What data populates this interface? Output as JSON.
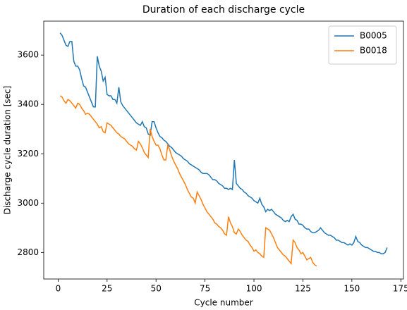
{
  "chart_data": {
    "type": "line",
    "title": "Duration of each discharge cycle",
    "xlabel": "Cycle number",
    "ylabel": "Discharge cycle duration [sec]",
    "xlim": [
      -7.35,
      176.35
    ],
    "xticks": [
      0,
      25,
      50,
      75,
      100,
      125,
      150,
      175
    ],
    "ylim": [
      2692.5,
      3737.5
    ],
    "yticks": [
      2800,
      3000,
      3200,
      3400,
      3600
    ],
    "grid": false,
    "legend": "upper right",
    "series": [
      {
        "name": "B0005",
        "color": "#1f77b4",
        "x": [
          1,
          2,
          3,
          4,
          5,
          6,
          7,
          8,
          9,
          10,
          11,
          12,
          13,
          14,
          15,
          16,
          17,
          18,
          19,
          20,
          21,
          22,
          23,
          24,
          25,
          26,
          27,
          28,
          29,
          30,
          31,
          32,
          33,
          34,
          35,
          36,
          37,
          38,
          39,
          40,
          41,
          42,
          43,
          44,
          45,
          46,
          47,
          48,
          49,
          50,
          51,
          52,
          53,
          54,
          55,
          56,
          57,
          58,
          59,
          60,
          61,
          62,
          63,
          64,
          65,
          66,
          67,
          68,
          69,
          70,
          71,
          72,
          73,
          74,
          75,
          76,
          77,
          78,
          79,
          80,
          81,
          82,
          83,
          84,
          85,
          86,
          87,
          88,
          89,
          90,
          91,
          92,
          93,
          94,
          95,
          96,
          97,
          98,
          99,
          100,
          101,
          102,
          103,
          104,
          105,
          106,
          107,
          108,
          109,
          110,
          111,
          112,
          113,
          114,
          115,
          116,
          117,
          118,
          119,
          120,
          121,
          122,
          123,
          124,
          125,
          126,
          127,
          128,
          129,
          130,
          131,
          132,
          133,
          134,
          135,
          136,
          137,
          138,
          139,
          140,
          141,
          142,
          143,
          144,
          145,
          146,
          147,
          148,
          149,
          150,
          151,
          152,
          153,
          154,
          155,
          156,
          157,
          158,
          159,
          160,
          161,
          162,
          163,
          164,
          165,
          166,
          167,
          168
        ],
        "values": [
          3690,
          3680,
          3660,
          3640,
          3635,
          3655,
          3655,
          3575,
          3555,
          3555,
          3540,
          3505,
          3475,
          3470,
          3450,
          3430,
          3410,
          3390,
          3390,
          3595,
          3555,
          3535,
          3495,
          3510,
          3440,
          3435,
          3435,
          3420,
          3420,
          3405,
          3470,
          3410,
          3395,
          3385,
          3375,
          3365,
          3355,
          3345,
          3335,
          3325,
          3320,
          3315,
          3330,
          3310,
          3305,
          3280,
          3275,
          3330,
          3330,
          3305,
          3285,
          3270,
          3265,
          3255,
          3250,
          3240,
          3230,
          3225,
          3215,
          3205,
          3200,
          3195,
          3190,
          3180,
          3175,
          3170,
          3160,
          3155,
          3150,
          3145,
          3140,
          3135,
          3125,
          3120,
          3120,
          3120,
          3115,
          3105,
          3095,
          3095,
          3090,
          3080,
          3075,
          3070,
          3060,
          3060,
          3055,
          3060,
          3055,
          3175,
          3080,
          3070,
          3060,
          3055,
          3045,
          3040,
          3030,
          3025,
          3020,
          3010,
          3005,
          3000,
          3020,
          2995,
          2985,
          2965,
          2975,
          2970,
          2975,
          2965,
          2955,
          2950,
          2945,
          2940,
          2930,
          2925,
          2930,
          2925,
          2945,
          2955,
          2935,
          2930,
          2915,
          2915,
          2910,
          2900,
          2895,
          2895,
          2885,
          2880,
          2880,
          2885,
          2890,
          2900,
          2890,
          2880,
          2875,
          2870,
          2870,
          2865,
          2860,
          2850,
          2850,
          2845,
          2840,
          2840,
          2835,
          2830,
          2835,
          2830,
          2840,
          2865,
          2845,
          2840,
          2830,
          2825,
          2820,
          2820,
          2815,
          2810,
          2805,
          2805,
          2800,
          2800,
          2795,
          2795,
          2800,
          2820
        ]
      },
      {
        "name": "B0018",
        "color": "#ff7f0e",
        "x": [
          1,
          2,
          3,
          4,
          5,
          6,
          7,
          8,
          9,
          10,
          11,
          12,
          13,
          14,
          15,
          16,
          17,
          18,
          19,
          20,
          21,
          22,
          23,
          24,
          25,
          26,
          27,
          28,
          29,
          30,
          31,
          32,
          33,
          34,
          35,
          36,
          37,
          38,
          39,
          40,
          41,
          42,
          43,
          44,
          45,
          46,
          47,
          48,
          49,
          50,
          51,
          52,
          53,
          54,
          55,
          56,
          57,
          58,
          59,
          60,
          61,
          62,
          63,
          64,
          65,
          66,
          67,
          68,
          69,
          70,
          71,
          72,
          73,
          74,
          75,
          76,
          77,
          78,
          79,
          80,
          81,
          82,
          83,
          84,
          85,
          86,
          87,
          88,
          89,
          90,
          91,
          92,
          93,
          94,
          95,
          96,
          97,
          98,
          99,
          100,
          101,
          102,
          103,
          104,
          105,
          106,
          107,
          108,
          109,
          110,
          111,
          112,
          113,
          114,
          115,
          116,
          117,
          118,
          119,
          120,
          121,
          122,
          123,
          124,
          125,
          126,
          127,
          128,
          129,
          130,
          131,
          132
        ],
        "values": [
          3435,
          3430,
          3415,
          3405,
          3420,
          3415,
          3405,
          3395,
          3385,
          3405,
          3400,
          3385,
          3375,
          3360,
          3365,
          3360,
          3350,
          3340,
          3330,
          3320,
          3305,
          3310,
          3290,
          3285,
          3325,
          3320,
          3315,
          3305,
          3295,
          3285,
          3280,
          3270,
          3265,
          3260,
          3250,
          3240,
          3235,
          3230,
          3220,
          3215,
          3250,
          3240,
          3225,
          3205,
          3195,
          3185,
          3300,
          3270,
          3250,
          3235,
          3235,
          3220,
          3195,
          3175,
          3175,
          3235,
          3215,
          3190,
          3170,
          3155,
          3140,
          3120,
          3105,
          3090,
          3075,
          3055,
          3040,
          3025,
          3020,
          3000,
          3045,
          3030,
          3015,
          2995,
          2980,
          2965,
          2955,
          2945,
          2935,
          2920,
          2915,
          2905,
          2900,
          2890,
          2875,
          2870,
          2945,
          2920,
          2905,
          2880,
          2875,
          2895,
          2885,
          2870,
          2860,
          2850,
          2845,
          2830,
          2820,
          2805,
          2810,
          2800,
          2795,
          2785,
          2780,
          2900,
          2895,
          2890,
          2875,
          2860,
          2840,
          2820,
          2810,
          2800,
          2790,
          2785,
          2775,
          2765,
          2755,
          2850,
          2840,
          2820,
          2810,
          2795,
          2800,
          2785,
          2770,
          2775,
          2780,
          2760,
          2750,
          2745
        ]
      }
    ]
  }
}
